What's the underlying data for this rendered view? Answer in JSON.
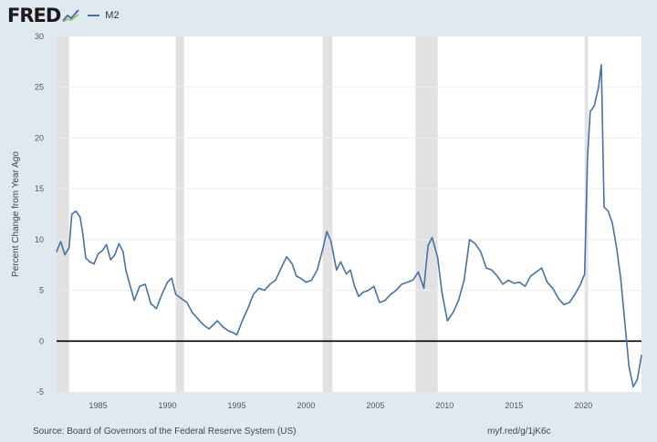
{
  "header": {
    "brand": "FRED",
    "brand_icon": "line-chart-icon",
    "legend_label": "M2",
    "series_color": "#4572a7"
  },
  "footer": {
    "source": "Source: Board of Governors of the Federal Reserve System (US)",
    "shortlink": "myf.red/g/1jK6c"
  },
  "chart_data": {
    "type": "line",
    "title": "",
    "xlabel": "",
    "ylabel": "Percent Change from Year Ago",
    "xlim": [
      1982.0,
      2024.2
    ],
    "ylim": [
      -5,
      30
    ],
    "x_ticks": [
      1985,
      1990,
      1995,
      2000,
      2005,
      2010,
      2015,
      2020
    ],
    "y_ticks": [
      -5,
      0,
      5,
      10,
      15,
      20,
      25,
      30
    ],
    "recessions": [
      [
        1982.0,
        1982.9
      ],
      [
        1990.6,
        1991.2
      ],
      [
        2001.2,
        2001.9
      ],
      [
        2007.9,
        2009.5
      ],
      [
        2020.1,
        2020.35
      ]
    ],
    "series": [
      {
        "name": "M2",
        "x": [
          1982.0,
          1982.3,
          1982.6,
          1982.9,
          1983.1,
          1983.4,
          1983.7,
          1983.9,
          1984.1,
          1984.4,
          1984.7,
          1985.0,
          1985.3,
          1985.6,
          1985.9,
          1986.2,
          1986.5,
          1986.8,
          1987.0,
          1987.3,
          1987.6,
          1988.0,
          1988.4,
          1988.8,
          1989.2,
          1989.6,
          1990.0,
          1990.3,
          1990.6,
          1991.0,
          1991.4,
          1991.8,
          1992.2,
          1992.6,
          1993.0,
          1993.3,
          1993.6,
          1994.0,
          1994.4,
          1994.8,
          1995.0,
          1995.4,
          1995.8,
          1996.2,
          1996.6,
          1997.0,
          1997.4,
          1997.8,
          1998.2,
          1998.6,
          1999.0,
          1999.3,
          1999.6,
          2000.0,
          2000.4,
          2000.8,
          2001.2,
          2001.5,
          2001.8,
          2002.2,
          2002.5,
          2002.9,
          2003.2,
          2003.5,
          2003.8,
          2004.1,
          2004.5,
          2004.9,
          2005.3,
          2005.7,
          2006.1,
          2006.5,
          2006.9,
          2007.3,
          2007.7,
          2008.1,
          2008.5,
          2008.8,
          2009.1,
          2009.5,
          2009.8,
          2010.2,
          2010.6,
          2011.0,
          2011.4,
          2011.8,
          2012.2,
          2012.6,
          2013.0,
          2013.4,
          2013.8,
          2014.2,
          2014.6,
          2015.0,
          2015.4,
          2015.8,
          2016.2,
          2016.6,
          2017.0,
          2017.4,
          2017.8,
          2018.2,
          2018.6,
          2019.0,
          2019.4,
          2019.8,
          2020.1,
          2020.3,
          2020.5,
          2020.8,
          2021.1,
          2021.3,
          2021.5,
          2021.8,
          2022.1,
          2022.4,
          2022.7,
          2023.0,
          2023.3,
          2023.6,
          2023.9,
          2024.2
        ],
        "values": [
          8.8,
          9.8,
          8.5,
          9.2,
          12.5,
          12.8,
          12.2,
          10.5,
          8.2,
          7.8,
          7.6,
          8.6,
          8.9,
          9.5,
          8.0,
          8.5,
          9.6,
          8.8,
          7.0,
          5.5,
          4.0,
          5.4,
          5.6,
          3.7,
          3.2,
          4.6,
          5.8,
          6.2,
          4.6,
          4.2,
          3.8,
          2.8,
          2.2,
          1.6,
          1.2,
          1.6,
          2.0,
          1.4,
          1.0,
          0.8,
          0.6,
          2.0,
          3.2,
          4.6,
          5.2,
          5.0,
          5.6,
          6.0,
          7.2,
          8.3,
          7.6,
          6.4,
          6.2,
          5.8,
          6.0,
          7.0,
          9.0,
          10.8,
          9.8,
          7.0,
          7.8,
          6.6,
          7.0,
          5.4,
          4.4,
          4.8,
          5.0,
          5.4,
          3.8,
          4.0,
          4.6,
          5.0,
          5.6,
          5.8,
          6.0,
          6.8,
          5.2,
          9.4,
          10.2,
          8.2,
          4.8,
          2.0,
          2.8,
          4.0,
          6.0,
          10.0,
          9.6,
          8.8,
          7.2,
          7.0,
          6.4,
          5.6,
          6.0,
          5.7,
          5.8,
          5.4,
          6.4,
          6.8,
          7.2,
          5.8,
          5.2,
          4.2,
          3.6,
          3.8,
          4.6,
          5.6,
          6.6,
          18.0,
          22.6,
          23.2,
          25.0,
          27.2,
          13.2,
          12.8,
          11.6,
          9.2,
          6.2,
          1.8,
          -2.5,
          -4.5,
          -3.8,
          -1.4
        ]
      }
    ]
  }
}
